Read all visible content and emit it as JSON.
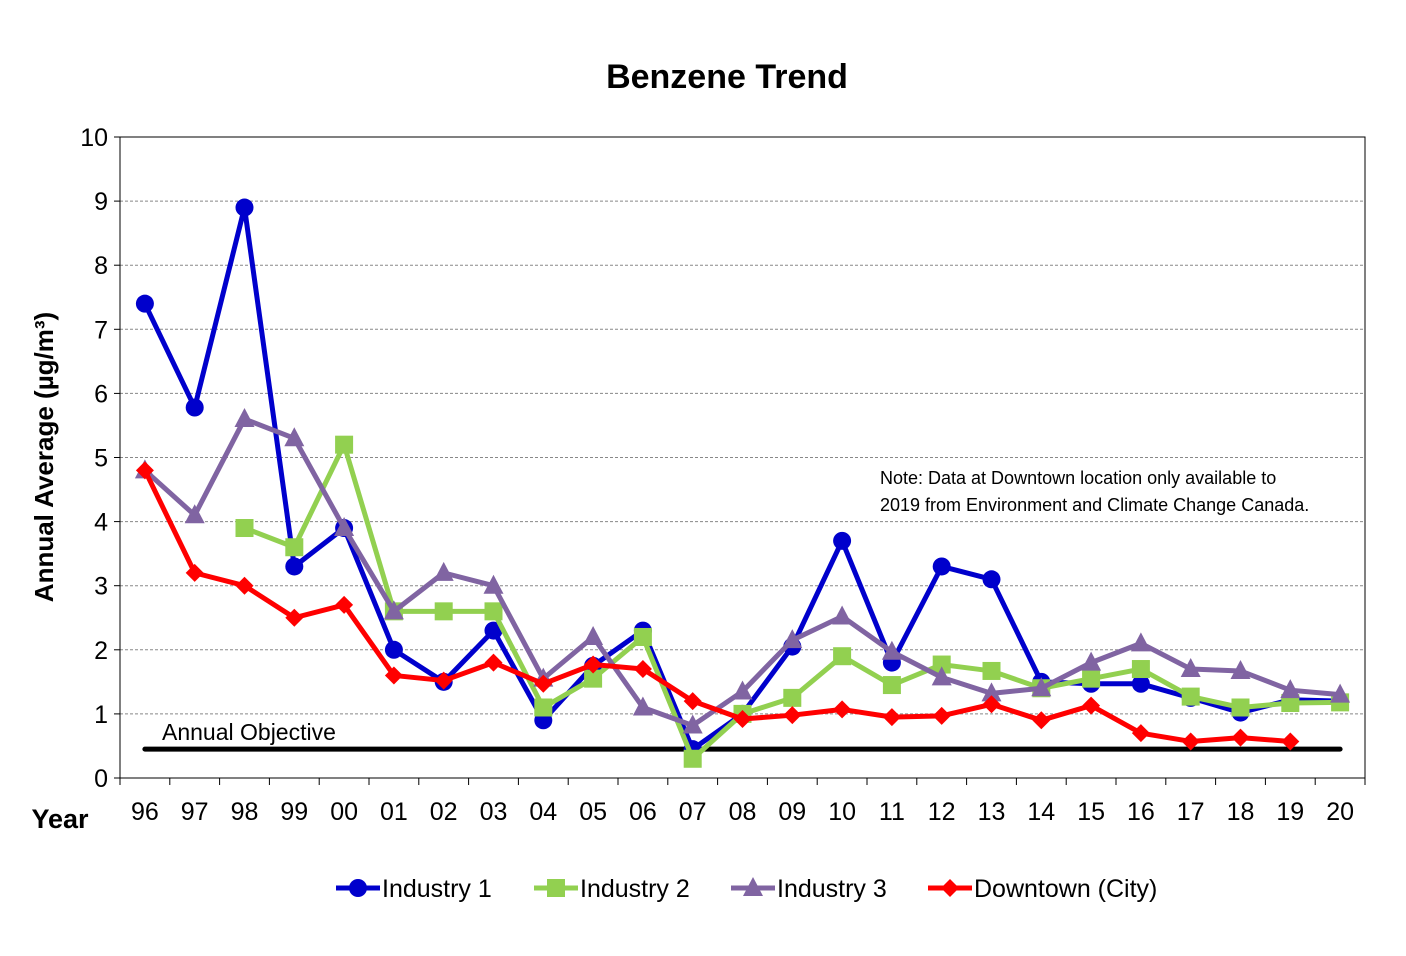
{
  "chart_data": {
    "type": "line",
    "title": "Benzene Trend",
    "xlabel": "Year",
    "ylabel": "Annual Average (µg/m³)",
    "ylim": [
      0,
      10
    ],
    "yticks": [
      "0",
      "1",
      "2",
      "3",
      "4",
      "5",
      "6",
      "7",
      "8",
      "9",
      "10"
    ],
    "grid": true,
    "legend_position": "bottom",
    "categories": [
      "96",
      "97",
      "98",
      "99",
      "00",
      "01",
      "02",
      "03",
      "04",
      "05",
      "06",
      "07",
      "08",
      "09",
      "10",
      "11",
      "12",
      "13",
      "14",
      "15",
      "16",
      "17",
      "18",
      "19",
      "20"
    ],
    "series": [
      {
        "name": "Industry 1",
        "color": "#0000CC",
        "marker": "circle",
        "values": [
          7.4,
          5.78,
          8.9,
          3.3,
          3.9,
          2.0,
          1.5,
          2.3,
          0.9,
          1.75,
          2.3,
          0.45,
          1.0,
          2.05,
          3.7,
          1.8,
          3.3,
          3.1,
          1.5,
          1.47,
          1.47,
          1.25,
          1.02,
          1.22,
          1.2
        ]
      },
      {
        "name": "Industry 2",
        "color": "#92D050",
        "marker": "square",
        "values": [
          null,
          null,
          3.9,
          3.6,
          5.2,
          2.6,
          2.6,
          2.6,
          1.1,
          1.55,
          2.2,
          0.3,
          1.0,
          1.25,
          1.9,
          1.45,
          1.77,
          1.67,
          1.4,
          1.55,
          1.7,
          1.27,
          1.1,
          1.17,
          1.18
        ]
      },
      {
        "name": "Industry 3",
        "color": "#8064A2",
        "marker": "triangle",
        "values": [
          4.8,
          4.1,
          5.6,
          5.3,
          3.9,
          2.6,
          3.2,
          3.0,
          1.55,
          2.2,
          1.1,
          0.82,
          1.35,
          2.15,
          2.52,
          1.97,
          1.57,
          1.32,
          1.4,
          1.8,
          2.1,
          1.7,
          1.67,
          1.37,
          1.3
        ]
      },
      {
        "name": "Downtown (City)",
        "color": "#FF0000",
        "marker": "diamond",
        "values": [
          4.8,
          3.2,
          3.0,
          2.5,
          2.7,
          1.6,
          1.52,
          1.8,
          1.47,
          1.77,
          1.7,
          1.2,
          0.92,
          0.98,
          1.07,
          0.95,
          0.97,
          1.15,
          0.9,
          1.13,
          0.7,
          0.57,
          0.63,
          0.57,
          null
        ]
      }
    ],
    "reference_line": {
      "label": "Annual Objective",
      "value": 0.45,
      "color": "#000000"
    },
    "annotation": [
      "Note: Data at Downtown location only available to",
      "2019 from Environment and Climate Change Canada."
    ]
  }
}
